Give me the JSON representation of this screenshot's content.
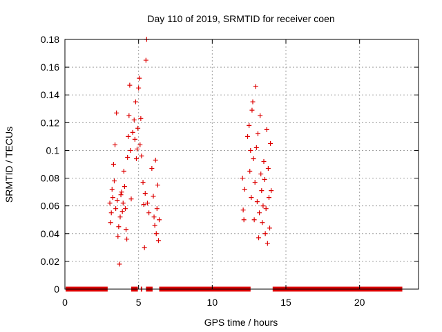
{
  "chart_data": {
    "type": "scatter",
    "title": "Day 110 of 2019, SRMTID for receiver coen",
    "xlabel": "GPS time / hours",
    "ylabel": "SRMTID / TECUs",
    "xlim": [
      0,
      24
    ],
    "ylim": [
      0,
      0.18
    ],
    "xticks": [
      0,
      5,
      10,
      15,
      20
    ],
    "xtick_labels": [
      "0",
      "5",
      "10",
      "15",
      "20"
    ],
    "yticks": [
      0,
      0.02,
      0.04,
      0.06,
      0.08,
      0.1,
      0.12,
      0.14,
      0.16,
      0.18
    ],
    "ytick_labels": [
      "0",
      "0.02",
      "0.04",
      "0.06",
      "0.08",
      "0.1",
      "0.12",
      "0.14",
      "0.16",
      "0.18"
    ],
    "grid": true,
    "marker": "+",
    "series_color": "#dd0000",
    "zero_segments": [
      [
        0.05,
        2.9
      ],
      [
        4.5,
        4.95
      ],
      [
        5.15,
        5.25
      ],
      [
        5.5,
        5.95
      ],
      [
        6.4,
        12.6
      ],
      [
        14.1,
        22.9
      ]
    ],
    "series": [
      {
        "name": "SRMTID",
        "points": [
          [
            3.05,
            0.062
          ],
          [
            3.1,
            0.048
          ],
          [
            3.15,
            0.055
          ],
          [
            3.2,
            0.072
          ],
          [
            3.25,
            0.066
          ],
          [
            3.3,
            0.09
          ],
          [
            3.35,
            0.078
          ],
          [
            3.4,
            0.104
          ],
          [
            3.45,
            0.058
          ],
          [
            3.5,
            0.127
          ],
          [
            3.55,
            0.064
          ],
          [
            3.6,
            0.038
          ],
          [
            3.65,
            0.045
          ],
          [
            3.7,
            0.018
          ],
          [
            3.75,
            0.052
          ],
          [
            3.8,
            0.068
          ],
          [
            3.85,
            0.07
          ],
          [
            3.9,
            0.056
          ],
          [
            3.95,
            0.062
          ],
          [
            4.0,
            0.085
          ],
          [
            4.05,
            0.074
          ],
          [
            4.1,
            0.058
          ],
          [
            4.15,
            0.043
          ],
          [
            4.2,
            0.036
          ],
          [
            4.25,
            0.095
          ],
          [
            4.3,
            0.11
          ],
          [
            4.35,
            0.125
          ],
          [
            4.4,
            0.147
          ],
          [
            4.45,
            0.1
          ],
          [
            4.5,
            0.065
          ],
          [
            4.6,
            0.113
          ],
          [
            4.7,
            0.122
          ],
          [
            4.75,
            0.108
          ],
          [
            4.8,
            0.135
          ],
          [
            4.85,
            0.094
          ],
          [
            4.9,
            0.101
          ],
          [
            4.95,
            0.116
          ],
          [
            5.0,
            0.145
          ],
          [
            5.05,
            0.152
          ],
          [
            5.1,
            0.104
          ],
          [
            5.15,
            0.123
          ],
          [
            5.2,
            0.096
          ],
          [
            5.3,
            0.077
          ],
          [
            5.35,
            0.061
          ],
          [
            5.4,
            0.03
          ],
          [
            5.45,
            0.069
          ],
          [
            5.5,
            0.165
          ],
          [
            5.55,
            0.18
          ],
          [
            5.6,
            0.062
          ],
          [
            5.7,
            0.055
          ],
          [
            5.9,
            0.087
          ],
          [
            6.0,
            0.067
          ],
          [
            6.05,
            0.052
          ],
          [
            6.1,
            0.046
          ],
          [
            6.15,
            0.093
          ],
          [
            6.2,
            0.04
          ],
          [
            6.25,
            0.058
          ],
          [
            6.3,
            0.075
          ],
          [
            6.35,
            0.035
          ],
          [
            6.4,
            0.05
          ],
          [
            12.05,
            0.08
          ],
          [
            12.1,
            0.057
          ],
          [
            12.15,
            0.05
          ],
          [
            12.2,
            0.072
          ],
          [
            12.4,
            0.11
          ],
          [
            12.5,
            0.118
          ],
          [
            12.55,
            0.085
          ],
          [
            12.6,
            0.1
          ],
          [
            12.65,
            0.066
          ],
          [
            12.7,
            0.129
          ],
          [
            12.75,
            0.135
          ],
          [
            12.8,
            0.094
          ],
          [
            12.85,
            0.05
          ],
          [
            12.9,
            0.077
          ],
          [
            12.95,
            0.146
          ],
          [
            13.0,
            0.102
          ],
          [
            13.05,
            0.063
          ],
          [
            13.1,
            0.112
          ],
          [
            13.15,
            0.037
          ],
          [
            13.2,
            0.055
          ],
          [
            13.25,
            0.125
          ],
          [
            13.3,
            0.083
          ],
          [
            13.35,
            0.071
          ],
          [
            13.4,
            0.048
          ],
          [
            13.45,
            0.06
          ],
          [
            13.5,
            0.092
          ],
          [
            13.55,
            0.079
          ],
          [
            13.6,
            0.04
          ],
          [
            13.65,
            0.058
          ],
          [
            13.7,
            0.115
          ],
          [
            13.75,
            0.033
          ],
          [
            13.8,
            0.087
          ],
          [
            13.85,
            0.066
          ],
          [
            13.9,
            0.044
          ],
          [
            13.95,
            0.105
          ],
          [
            14.0,
            0.071
          ]
        ]
      }
    ]
  }
}
